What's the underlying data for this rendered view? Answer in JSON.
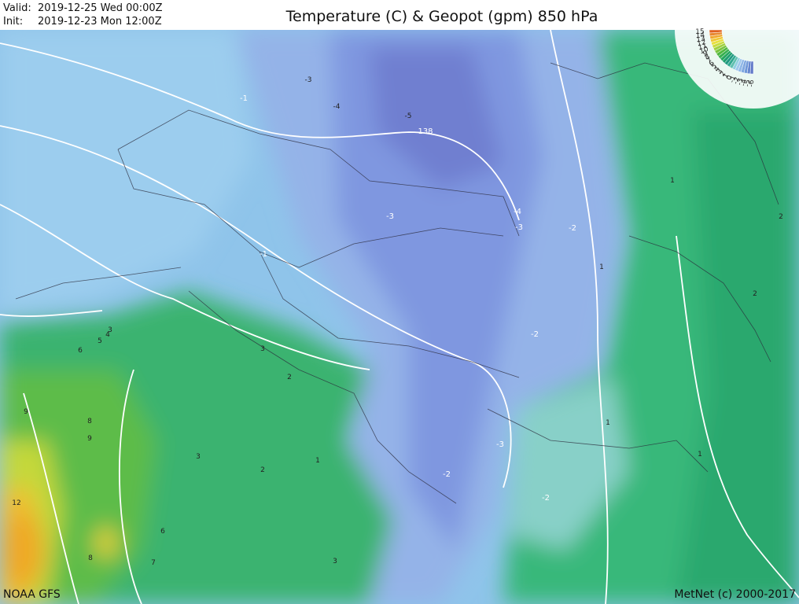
{
  "header": {
    "valid_label": "Valid:",
    "valid_time": "2019-12-25 Wed 00:00Z",
    "init_label": "Init:",
    "init_time": "2019-12-23 Mon 12:00Z",
    "title": "Temperature (C) & Geopot (gpm) 850 hPa"
  },
  "footer": {
    "model": "NOAA GFS",
    "copyright": "MetNet (c) 2000-2017"
  },
  "legend": {
    "labels": [
      "15",
      "14",
      "13",
      "12",
      "11",
      "10",
      "9",
      "8",
      "7",
      "6",
      "5",
      "4",
      "3",
      "2",
      "1",
      "0",
      "-1",
      "-2",
      "-3",
      "-4",
      "-5",
      "-6"
    ]
  },
  "contour_labels": [
    "-3",
    "-4",
    "-5",
    "138",
    "-1",
    "-3",
    "-4",
    "-3",
    "-2",
    "-1",
    "-2",
    "-3",
    "-2",
    "-2",
    "1",
    "2",
    "2",
    "1",
    "1",
    "1",
    "3",
    "2",
    "6",
    "5",
    "4",
    "9",
    "8",
    "9",
    "12",
    "3",
    "6",
    "7",
    "8",
    "2",
    "3",
    "1",
    "3"
  ]
}
